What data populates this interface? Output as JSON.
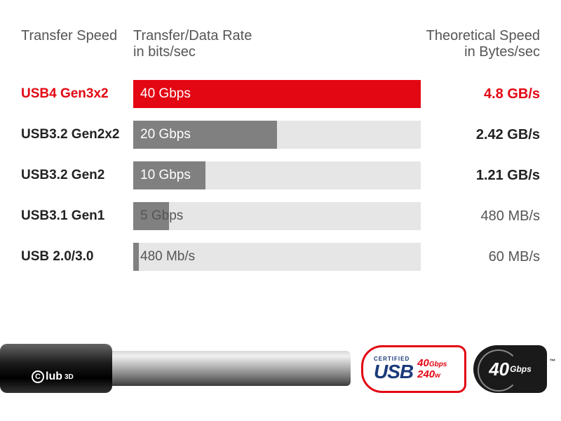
{
  "headers": {
    "col1": "Transfer Speed",
    "col2_line1": "Transfer/Data Rate",
    "col2_line2": "in bits/sec",
    "col3_line1": "Theoretical Speed",
    "col3_line2": "in Bytes/sec"
  },
  "chart": {
    "type": "bar",
    "max_value": 40,
    "bar_bg_color": "#e6e6e6",
    "header_text_color": "#555555",
    "normal_label_color": "#222222",
    "highlight_color": "#e30613",
    "dark_bar_color": "#808080",
    "label_fontsize": 19,
    "speed_fontsize": 20
  },
  "rows": [
    {
      "label": "USB4 Gen3x2",
      "value": 40,
      "bar_text": "40 Gbps",
      "speed": "4.8 GB/s",
      "highlighted": true,
      "fill_color": "#e30613",
      "bar_text_color": "#ffffff",
      "label_color": "#e30613",
      "speed_color": "#e30613"
    },
    {
      "label": "USB3.2 Gen2x2",
      "value": 20,
      "bar_text": "20 Gbps",
      "speed": "2.42 GB/s",
      "highlighted": false,
      "fill_color": "#808080",
      "bar_text_color": "#ffffff",
      "label_color": "#222222",
      "speed_color": "#222222"
    },
    {
      "label": "USB3.2 Gen2",
      "value": 10,
      "bar_text": "10 Gbps",
      "speed": "1.21 GB/s",
      "highlighted": false,
      "fill_color": "#808080",
      "bar_text_color": "#ffffff",
      "label_color": "#222222",
      "speed_color": "#222222"
    },
    {
      "label": "USB3.1 Gen1",
      "value": 5,
      "bar_text": "5 Gbps",
      "speed": "480 MB/s",
      "highlighted": false,
      "fill_color": "#808080",
      "bar_text_color": "#555555",
      "label_color": "#222222",
      "speed_color": "#555555"
    },
    {
      "label": "USB 2.0/3.0",
      "value": 0.48,
      "bar_text": "480 Mb/s",
      "speed": "60 MB/s",
      "highlighted": false,
      "fill_color": "#808080",
      "bar_text_color": "#555555",
      "label_color": "#222222",
      "speed_color": "#555555"
    }
  ],
  "footer": {
    "club_logo_text": "lub",
    "club_logo_suffix": "3D",
    "usb_certified_label": "CERTIFIED",
    "usb_text": "USB",
    "usb_speed_num": "40",
    "usb_speed_unit": "Gbps",
    "usb_power_num": "240",
    "usb_power_unit": "w",
    "badge_num": "40",
    "badge_unit": "Gbps"
  }
}
